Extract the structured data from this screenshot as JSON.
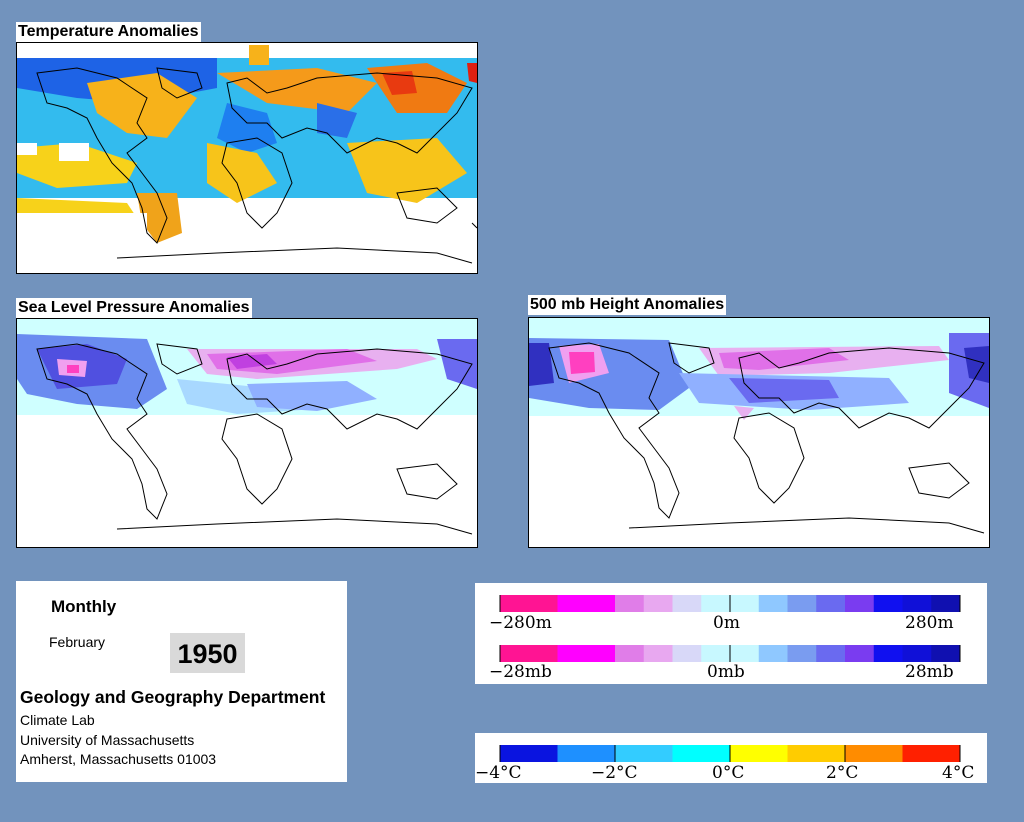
{
  "panels": {
    "temperature": {
      "title": "Temperature Anomalies"
    },
    "slp": {
      "title": "Sea Level Pressure Anomalies"
    },
    "height": {
      "title": "500 mb Height Anomalies"
    }
  },
  "info": {
    "frequency": "Monthly",
    "month": "February",
    "year": "1950",
    "department": "Geology and Geography Department",
    "lab": "Climate Lab",
    "university": "University of Massachusetts",
    "address": "Amherst, Massachusetts 01003"
  },
  "legends": {
    "height": {
      "labels": [
        "−280m",
        "0m",
        "280m"
      ],
      "colors": [
        "#ff1493",
        "#ff1493",
        "#ff00ff",
        "#ff00ff",
        "#e07de8",
        "#e8a8f0",
        "#d8d8f8",
        "#c8f8ff",
        "#c8f8ff",
        "#8fc8ff",
        "#7a9cf0",
        "#6a6af0",
        "#7a3cf0",
        "#1010f0",
        "#1010d8",
        "#1010b0"
      ]
    },
    "pressure": {
      "labels": [
        "−28mb",
        "0mb",
        "28mb"
      ],
      "colors": [
        "#ff1493",
        "#ff1493",
        "#ff00ff",
        "#ff00ff",
        "#e07de8",
        "#e8a8f0",
        "#d8d8f8",
        "#c8f8ff",
        "#c8f8ff",
        "#8fc8ff",
        "#7a9cf0",
        "#6a6af0",
        "#7a3cf0",
        "#1010f0",
        "#1010d8",
        "#1010b0"
      ]
    },
    "temperature": {
      "labels": [
        "−4°C",
        "−2°C",
        "0°C",
        "2°C",
        "4°C"
      ],
      "colors": [
        "#0a14e0",
        "#1e90ff",
        "#33ccff",
        "#00ffff",
        "#ffff00",
        "#ffcc00",
        "#ff8c00",
        "#ff2000"
      ]
    }
  }
}
